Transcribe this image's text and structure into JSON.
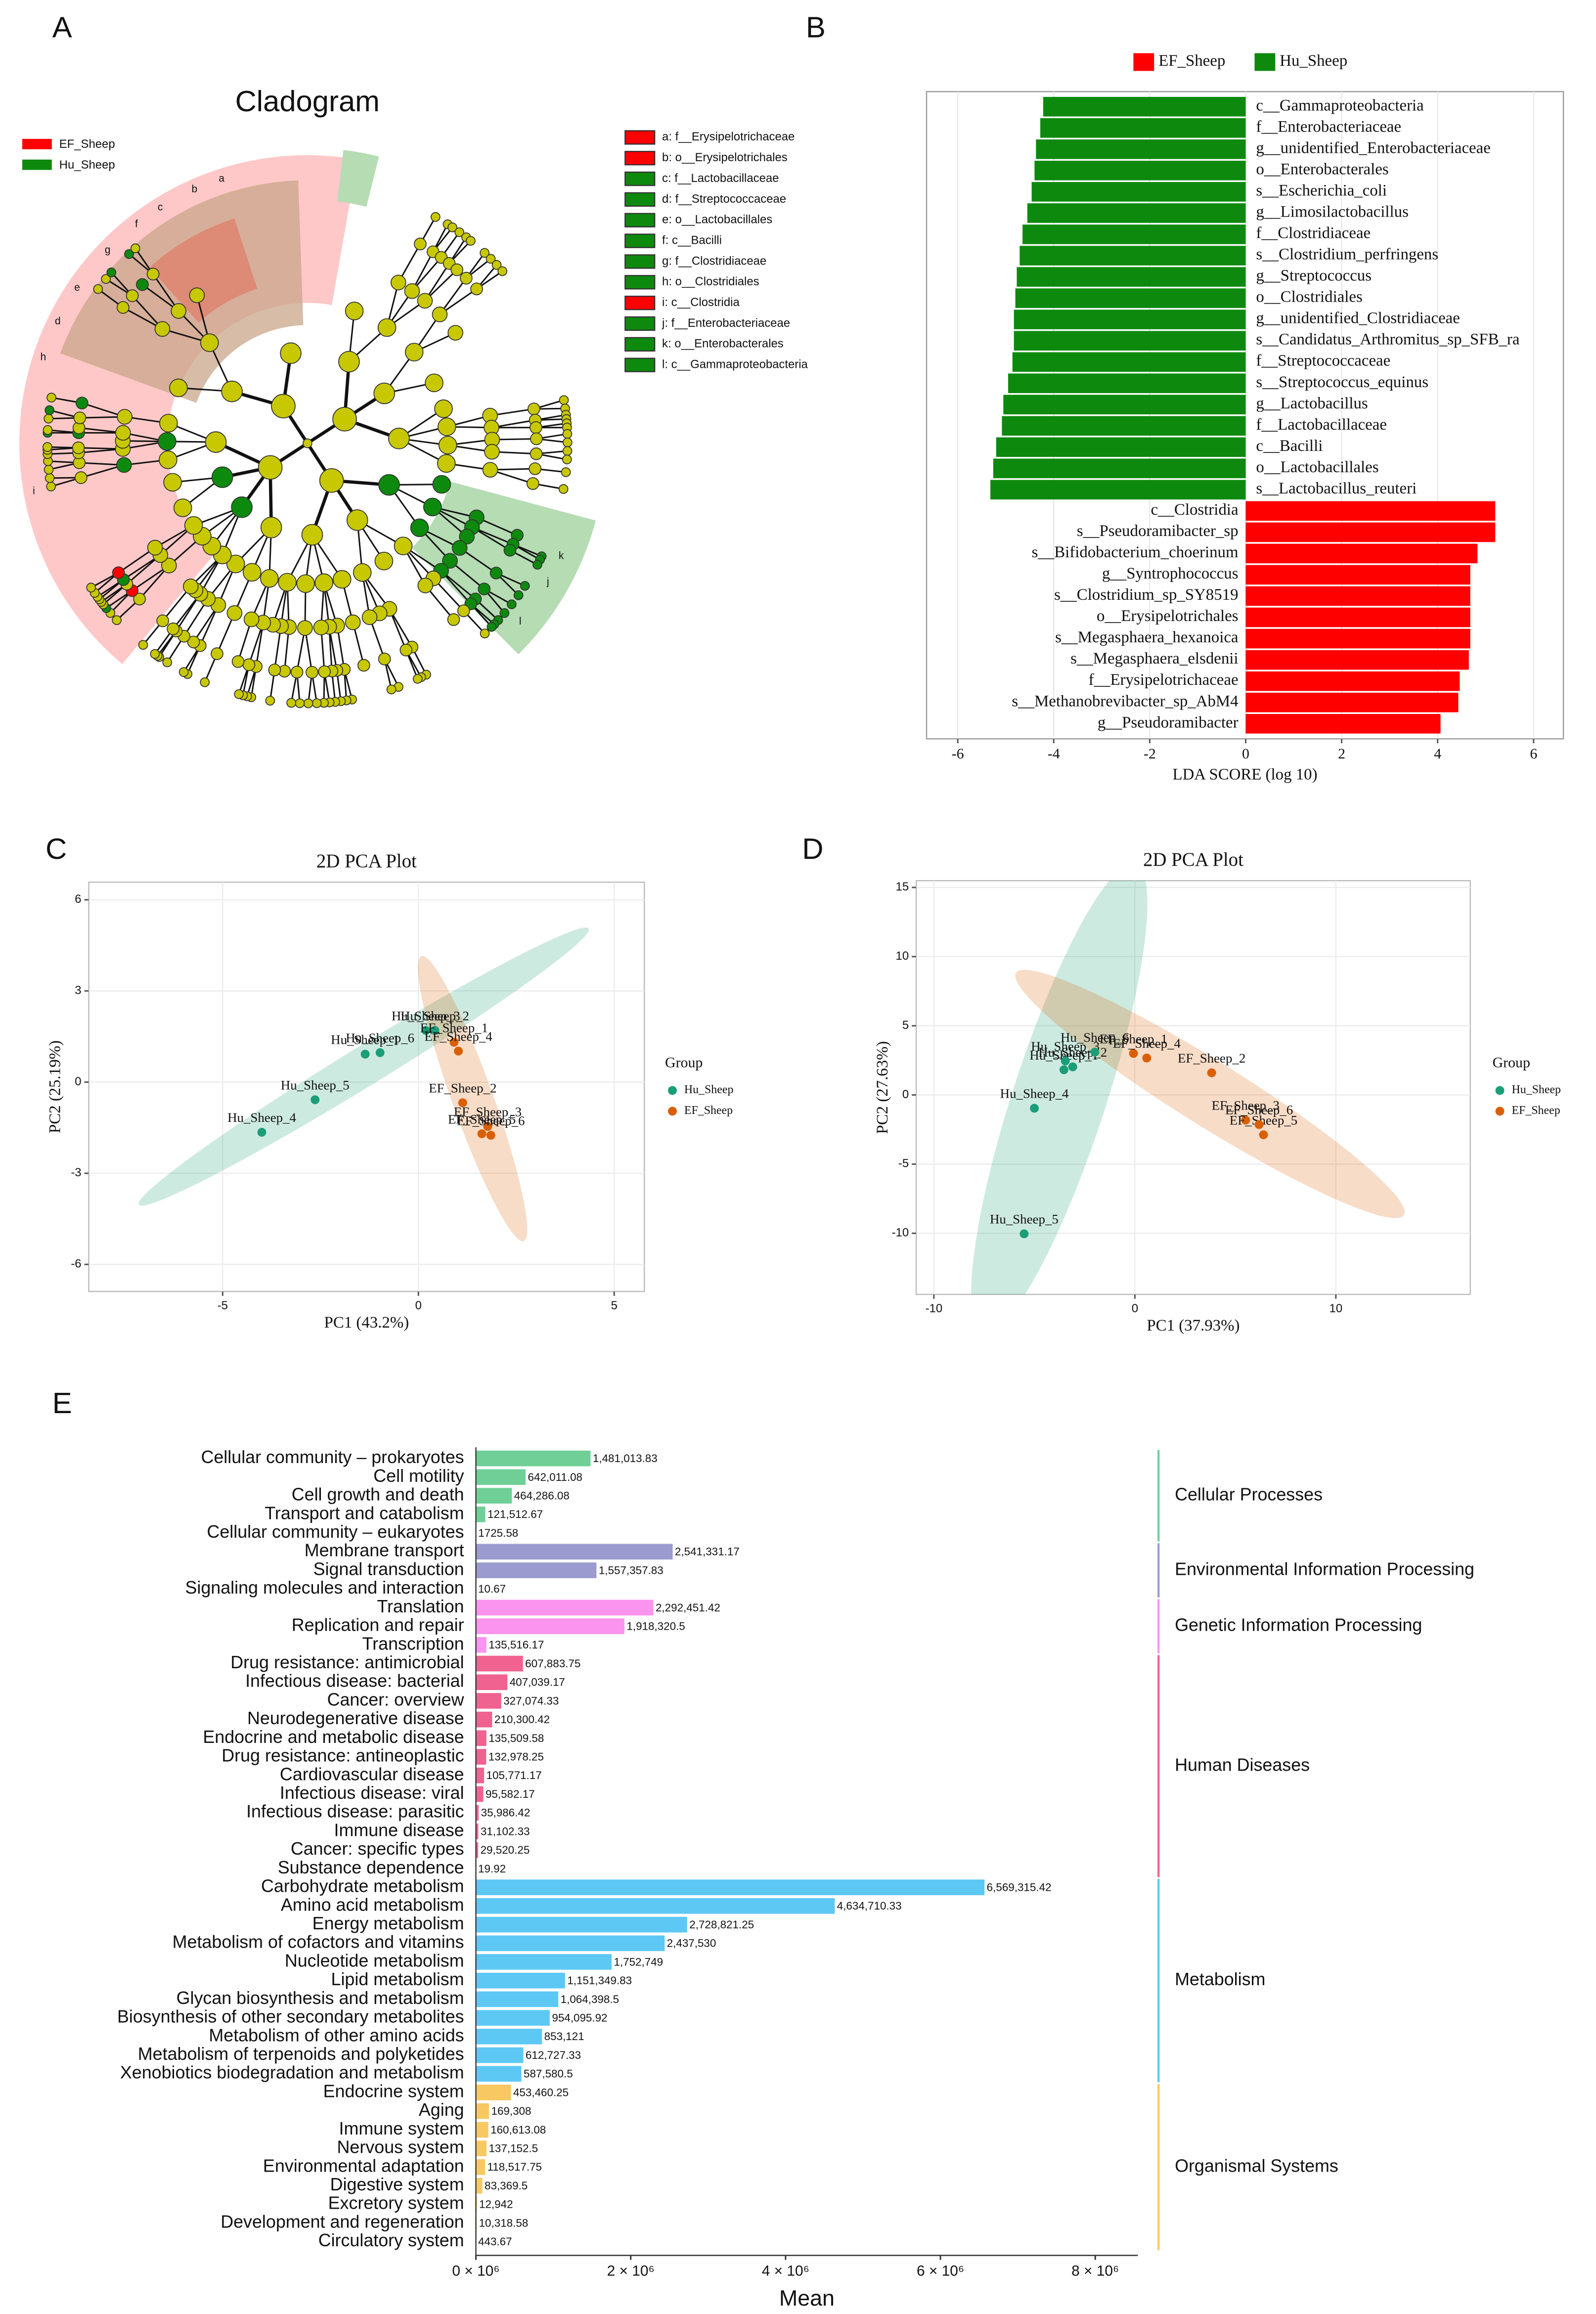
{
  "chart_data": [
    {
      "type": "cladogram",
      "panel": "A",
      "title": "Cladogram",
      "legend": [
        {
          "name": "EF_Sheep",
          "color": "#ff0000"
        },
        {
          "name": "Hu_Sheep",
          "color": "#0d8a0d"
        }
      ],
      "taxa": [
        {
          "letter": "a",
          "label": "a: f__Erysipelotrichaceae",
          "color": "#ff0000"
        },
        {
          "letter": "b",
          "label": "b: o__Erysipelotrichales",
          "color": "#ff0000"
        },
        {
          "letter": "c",
          "label": "c: f__Lactobacillaceae",
          "color": "#0d8a0d"
        },
        {
          "letter": "d",
          "label": "d: f__Streptococcaceae",
          "color": "#0d8a0d"
        },
        {
          "letter": "e",
          "label": "e: o__Lactobacillales",
          "color": "#0d8a0d"
        },
        {
          "letter": "f",
          "label": "f: c__Bacilli",
          "color": "#0d8a0d"
        },
        {
          "letter": "g",
          "label": "g: f__Clostridiaceae",
          "color": "#0d8a0d"
        },
        {
          "letter": "h",
          "label": "h: o__Clostridiales",
          "color": "#0d8a0d"
        },
        {
          "letter": "i",
          "label": "i: c__Clostridia",
          "color": "#ff0000"
        },
        {
          "letter": "j",
          "label": "j: f__Enterobacteriaceae",
          "color": "#0d8a0d"
        },
        {
          "letter": "k",
          "label": "k: o__Enterobacterales",
          "color": "#0d8a0d"
        },
        {
          "letter": "l",
          "label": "l: c__Gammaproteobacteria",
          "color": "#0d8a0d"
        }
      ]
    },
    {
      "type": "bar",
      "panel": "B",
      "xlabel": "LDA SCORE (log 10)",
      "legend": [
        {
          "name": "EF_Sheep",
          "color": "#ff0000"
        },
        {
          "name": "Hu_Sheep",
          "color": "#0d8a0d"
        }
      ],
      "categories": [
        "c__Gammaproteobacteria",
        "f__Enterobacteriaceae",
        "g__unidentified_Enterobacteriaceae",
        "o__Enterobacterales",
        "s__Escherichia_coli",
        "g__Limosilactobacillus",
        "f__Clostridiaceae",
        "s__Clostridium_perfringens",
        "g__Streptococcus",
        "o__Clostridiales",
        "g__unidentified_Clostridiaceae",
        "s__Candidatus_Arthromitus_sp_SFB_ra",
        "f__Streptococcaceae",
        "s__Streptococcus_equinus",
        "g__Lactobacillus",
        "f__Lactobacillaceae",
        "c__Bacilli",
        "o__Lactobacillales",
        "s__Lactobacillus_reuteri",
        "c__Clostridia",
        "s__Pseudoramibacter_sp",
        "s__Bifidobacterium_choerinum",
        "g__Syntrophococcus",
        "s__Clostridium_sp_SY8519",
        "o__Erysipelotrichales",
        "s__Megasphaera_hexanoica",
        "s__Megasphaera_elsdenii",
        "f__Erysipelotrichaceae",
        "s__Methanobrevibacter_sp_AbM4",
        "g__Pseudoramibacter"
      ],
      "values": [
        -4.22,
        -4.28,
        -4.37,
        -4.4,
        -4.46,
        -4.55,
        -4.65,
        -4.71,
        -4.77,
        -4.8,
        -4.83,
        -4.83,
        -4.86,
        -4.95,
        -5.05,
        -5.08,
        -5.2,
        -5.26,
        -5.32,
        5.2,
        5.2,
        4.83,
        4.68,
        4.68,
        4.68,
        4.68,
        4.65,
        4.46,
        4.43,
        4.06
      ],
      "xlim": [
        -6.65,
        6.62
      ],
      "xticks": [
        -6,
        -4,
        -2,
        0,
        2,
        4,
        6
      ],
      "grid": true
    },
    {
      "type": "scatter",
      "panel": "C",
      "title": "2D PCA Plot",
      "xlabel": "PC1 (43.2%)",
      "ylabel": "PC2 (25.19%)",
      "legend_title": "Group",
      "series": [
        {
          "name": "Hu_Sheep",
          "color": "#1b9e77",
          "labels": [
            "Hu_Sheep_1",
            "Hu_Sheep_2",
            "Hu_Sheep_3",
            "Hu_Sheep_4",
            "Hu_Sheep_5",
            "Hu_Sheep_6"
          ],
          "x": [
            -1.36,
            0.42,
            0.19,
            -4.0,
            -2.64,
            -0.98
          ],
          "y": [
            0.92,
            1.7,
            1.7,
            -1.65,
            -0.58,
            0.97
          ]
        },
        {
          "name": "EF_Sheep",
          "color": "#d95f02",
          "labels": [
            "EF_Sheep_1",
            "EF_Sheep_2",
            "EF_Sheep_3",
            "EF_Sheep_4",
            "EF_Sheep_5",
            "EF_Sheep_6"
          ],
          "x": [
            0.91,
            1.13,
            1.77,
            1.02,
            1.62,
            1.85
          ],
          "y": [
            1.31,
            -0.68,
            -1.46,
            1.02,
            -1.7,
            -1.75
          ]
        }
      ],
      "xlim": [
        -8.42,
        5.77
      ],
      "ylim": [
        -6.89,
        6.58
      ],
      "xticks": [
        -5,
        0,
        5
      ],
      "yticks": [
        -6,
        -3,
        0,
        3,
        6
      ],
      "grid": true
    },
    {
      "type": "scatter",
      "panel": "D",
      "title": "2D PCA Plot",
      "xlabel": "PC1 (37.93%)",
      "ylabel": "PC2 (27.63%)",
      "legend_title": "Group",
      "series": [
        {
          "name": "Hu_Sheep",
          "color": "#1b9e77",
          "labels": [
            "Hu_Sheep_1",
            "Hu_Sheep_2",
            "Hu_Sheep_3",
            "Hu_Sheep_4",
            "Hu_Sheep_5",
            "Hu_Sheep_6"
          ],
          "x": [
            -3.53,
            -3.09,
            -3.46,
            -5.0,
            -5.51,
            -1.99
          ],
          "y": [
            1.82,
            2.03,
            2.46,
            -0.96,
            -10.04,
            3.1
          ]
        },
        {
          "name": "EF_Sheep",
          "color": "#d95f02",
          "labels": [
            "EF_Sheep_1",
            "EF_Sheep_2",
            "EF_Sheep_3",
            "EF_Sheep_4",
            "EF_Sheep_5",
            "EF_Sheep_6"
          ],
          "x": [
            -0.07,
            3.82,
            5.51,
            0.59,
            6.4,
            6.18
          ],
          "y": [
            3.0,
            1.6,
            -1.82,
            2.67,
            -2.88,
            -2.14
          ]
        }
      ],
      "xlim": [
        -10.88,
        16.69
      ],
      "ylim": [
        -14.42,
        15.49
      ],
      "xticks": [
        -10,
        0,
        10
      ],
      "yticks": [
        -10,
        -5,
        0,
        5,
        10,
        15
      ],
      "grid": true
    },
    {
      "type": "bar",
      "panel": "E",
      "xlabel": "Mean",
      "xlim": [
        0,
        8550000
      ],
      "xticks": [
        {
          "value": 0,
          "label": "0 × 10⁶"
        },
        {
          "value": 2000000,
          "label": "2 × 10⁶"
        },
        {
          "value": 4000000,
          "label": "4 × 10⁶"
        },
        {
          "value": 6000000,
          "label": "6 × 10⁶"
        },
        {
          "value": 8000000,
          "label": "8 × 10⁶"
        }
      ],
      "series": [
        {
          "name": "Cellular Processes",
          "color": "#6fcf97",
          "categories": [
            "Cellular community – prokaryotes",
            "Cell motility",
            "Cell growth and death",
            "Transport and catabolism",
            "Cellular community – eukaryotes"
          ],
          "values": [
            1481013.83,
            642011.08,
            464286.08,
            121512.67,
            1725.58
          ],
          "value_labels": [
            "1,481,013.83",
            "642,011.08",
            "464,286.08",
            "121,512.67",
            "1725.58"
          ]
        },
        {
          "name": "Environmental Information Processing",
          "color": "#9b9bd0",
          "categories": [
            "Membrane transport",
            "Signal transduction",
            "Signaling molecules and interaction"
          ],
          "values": [
            2541331.17,
            1557357.83,
            10.67
          ],
          "value_labels": [
            "2,541,331.17",
            "1,557,357.83",
            "10.67"
          ]
        },
        {
          "name": "Genetic Information Processing",
          "color": "#fb94ee",
          "categories": [
            "Translation",
            "Replication and repair",
            "Transcription"
          ],
          "values": [
            2292451.42,
            1918320.5,
            135516.17
          ],
          "value_labels": [
            "2,292,451.42",
            "1,918,320.5",
            "135,516.17"
          ]
        },
        {
          "name": "Human Diseases",
          "color": "#f0628f",
          "categories": [
            "Drug resistance: antimicrobial",
            "Infectious disease: bacterial",
            "Cancer: overview",
            "Neurodegenerative disease",
            "Endocrine and metabolic disease",
            "Drug resistance: antineoplastic",
            "Cardiovascular disease",
            "Infectious disease: viral",
            "Infectious disease: parasitic",
            "Immune disease",
            "Cancer: specific types",
            "Substance dependence"
          ],
          "values": [
            607883.75,
            407039.17,
            327074.33,
            210300.42,
            135509.58,
            132978.25,
            105771.17,
            95582.17,
            35986.42,
            31102.33,
            29520.25,
            19.92
          ],
          "value_labels": [
            "607,883.75",
            "407,039.17",
            "327,074.33",
            "210,300.42",
            "135,509.58",
            "132,978.25",
            "105,771.17",
            "95,582.17",
            "35,986.42",
            "31,102.33",
            "29,520.25",
            "19.92"
          ]
        },
        {
          "name": "Metabolism",
          "color": "#5ec8f5",
          "categories": [
            "Carbohydrate metabolism",
            "Amino acid metabolism",
            "Energy metabolism",
            "Metabolism of cofactors and vitamins",
            "Nucleotide metabolism",
            "Lipid metabolism",
            "Glycan biosynthesis and metabolism",
            "Biosynthesis of other secondary metabolites",
            "Metabolism of other amino acids",
            "Metabolism of terpenoids and polyketides",
            "Xenobiotics biodegradation and metabolism"
          ],
          "values": [
            6569315.42,
            4634710.33,
            2728821.25,
            2437530,
            1752749,
            1151349.83,
            1064398.5,
            954095.92,
            853121,
            612727.33,
            587580.5
          ],
          "value_labels": [
            "6,569,315.42",
            "4,634,710.33",
            "2,728,821.25",
            "2,437,530",
            "1,752,749",
            "1,151,349.83",
            "1,064,398.5",
            "954,095.92",
            "853,121",
            "612,727.33",
            "587,580.5"
          ]
        },
        {
          "name": "Organismal Systems",
          "color": "#f8c862",
          "categories": [
            "Endocrine system",
            "Aging",
            "Immune system",
            "Nervous system",
            "Environmental adaptation",
            "Digestive system",
            "Excretory system",
            "Development and regeneration",
            "Circulatory system"
          ],
          "values": [
            453460.25,
            169308,
            160613.08,
            137152.5,
            118517.75,
            83369.5,
            12942,
            10318.58,
            443.67
          ],
          "value_labels": [
            "453,460.25",
            "169,308",
            "160,613.08",
            "137,152.5",
            "118,517.75",
            "83,369.5",
            "12,942",
            "10,318.58",
            "443.67"
          ]
        }
      ]
    }
  ]
}
